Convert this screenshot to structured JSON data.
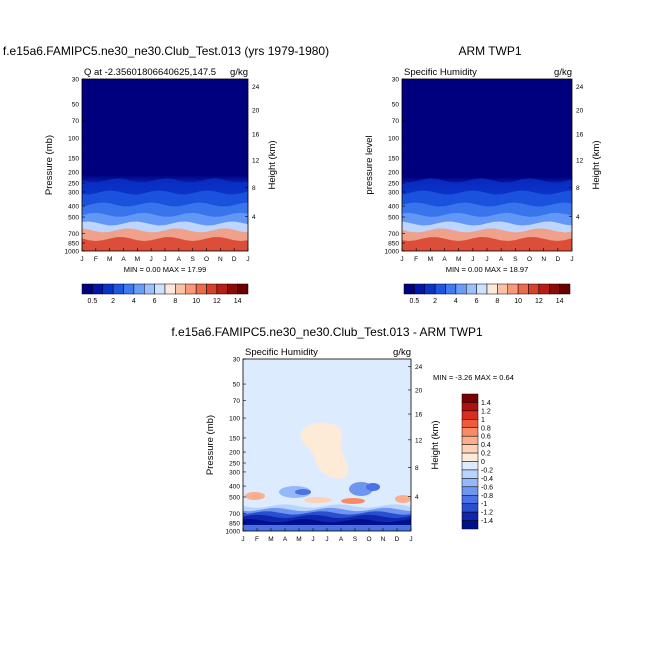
{
  "chart_data": [
    {
      "type": "heatmap",
      "title": "f.e15a6.FAMIPC5.ne30_ne30.Club_Test.013 (yrs 1979-1980)",
      "subtitle_left": "Q at -2.35601806640625,147.5",
      "subtitle_right": "g/kg",
      "ylabel": "Pressure (mb)",
      "ylabel_right": "Height (km)",
      "x_ticks": [
        "J",
        "F",
        "M",
        "A",
        "M",
        "J",
        "J",
        "A",
        "S",
        "O",
        "N",
        "D",
        "J"
      ],
      "y_ticks": [
        "30",
        "50",
        "70",
        "100",
        "150",
        "200",
        "250",
        "300",
        "400",
        "500",
        "700",
        "850",
        "1000"
      ],
      "y_ticks_right": [
        "24",
        "20",
        "16",
        "12",
        "8",
        "4"
      ],
      "stats": "MIN =   0.00 MAX =  17.99",
      "min": 0.0,
      "max": 17.99,
      "colorbar_labels": [
        "0.5",
        "2",
        "4",
        "6",
        "8",
        "10",
        "12",
        "14"
      ],
      "colorbar_position": "bottom"
    },
    {
      "type": "heatmap",
      "title": "ARM TWP1",
      "subtitle_left": "Specific Humidity",
      "subtitle_right": "g/kg",
      "ylabel": "pressure level",
      "ylabel_right": "Height (km)",
      "x_ticks": [
        "J",
        "F",
        "M",
        "A",
        "M",
        "J",
        "J",
        "A",
        "S",
        "O",
        "N",
        "D",
        "J"
      ],
      "y_ticks": [
        "30",
        "50",
        "70",
        "100",
        "150",
        "200",
        "250",
        "300",
        "400",
        "500",
        "700",
        "850",
        "1000"
      ],
      "y_ticks_right": [
        "24",
        "20",
        "16",
        "12",
        "8",
        "4"
      ],
      "stats": "MIN =   0.00 MAX =  18.97",
      "min": 0.0,
      "max": 18.97,
      "colorbar_labels": [
        "0.5",
        "2",
        "4",
        "6",
        "8",
        "10",
        "12",
        "14"
      ],
      "colorbar_position": "bottom"
    },
    {
      "type": "heatmap",
      "title": "f.e15a6.FAMIPC5.ne30_ne30.Club_Test.013 - ARM TWP1",
      "subtitle_left": "Specific Humidity",
      "subtitle_right": "g/kg",
      "ylabel": "Pressure (mb)",
      "ylabel_right": "Height (km)",
      "x_ticks": [
        "J",
        "F",
        "M",
        "A",
        "M",
        "J",
        "J",
        "A",
        "S",
        "O",
        "N",
        "D",
        "J"
      ],
      "y_ticks": [
        "30",
        "50",
        "70",
        "100",
        "150",
        "200",
        "250",
        "300",
        "400",
        "500",
        "700",
        "850",
        "1000"
      ],
      "y_ticks_right": [
        "24",
        "20",
        "16",
        "12",
        "8",
        "4"
      ],
      "stats": "MIN =  -3.26 MAX =   0.64",
      "min": -3.26,
      "max": 0.64,
      "colorbar_labels": [
        "1.4",
        "1.2",
        "1",
        "0.8",
        "0.6",
        "0.4",
        "0.2",
        "0",
        "-0.2",
        "-0.4",
        "-0.6",
        "-0.8",
        "-1",
        "-1.2",
        "-1.4"
      ],
      "colorbar_position": "right"
    }
  ],
  "colors": {
    "seq_levels": [
      "#00007f",
      "#0016a8",
      "#0a33c8",
      "#1d57e0",
      "#3d7bf0",
      "#6a9cf8",
      "#9cc0fc",
      "#cfe0fe",
      "#fde8dc",
      "#fcc2a8",
      "#f89878",
      "#ee6a4c",
      "#d8402c",
      "#b81c18",
      "#8c0a0a",
      "#6a0000"
    ],
    "div_levels": [
      "#7a0000",
      "#b01010",
      "#d83020",
      "#f05a3c",
      "#f88a66",
      "#fbae8e",
      "#fdd0b8",
      "#fdebd8",
      "#dcecfe",
      "#b8d4fc",
      "#94b8f8",
      "#6e96f0",
      "#4a72e4",
      "#2a4ed0",
      "#1026b0",
      "#00108a"
    ]
  }
}
